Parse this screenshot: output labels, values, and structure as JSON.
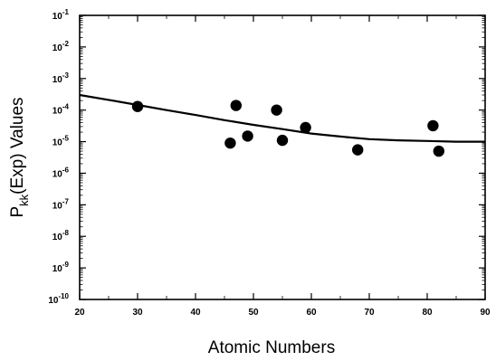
{
  "chart_data": {
    "type": "scatter",
    "title": "",
    "xlabel": "Atomic Numbers",
    "ylabel": {
      "main": "P",
      "subscript": "kk",
      "rest": "(Exp)  Values"
    },
    "xlim": [
      20,
      90
    ],
    "ylim_log10": [
      -10,
      -1
    ],
    "y_scale": "log",
    "grid": false,
    "x_ticks": [
      20,
      30,
      40,
      50,
      60,
      70,
      80,
      90
    ],
    "x_tick_labels": [
      "20",
      "30",
      "40",
      "50",
      "60",
      "70",
      "80",
      "90"
    ],
    "y_ticks_log10": [
      -10,
      -9,
      -8,
      -7,
      -6,
      -5,
      -4,
      -3,
      -2,
      -1
    ],
    "y_tick_labels": [
      {
        "base": "10",
        "exp": "-10"
      },
      {
        "base": "10",
        "exp": "-9"
      },
      {
        "base": "10",
        "exp": "-8"
      },
      {
        "base": "10",
        "exp": "-7"
      },
      {
        "base": "10",
        "exp": "-6"
      },
      {
        "base": "10",
        "exp": "-5"
      },
      {
        "base": "10",
        "exp": "-4"
      },
      {
        "base": "10",
        "exp": "-3"
      },
      {
        "base": "10",
        "exp": "-2"
      },
      {
        "base": "10",
        "exp": "-1"
      }
    ],
    "points": [
      {
        "x": 30,
        "y": 0.00013
      },
      {
        "x": 46,
        "y": 9e-06
      },
      {
        "x": 47,
        "y": 0.00014
      },
      {
        "x": 49,
        "y": 1.5e-05
      },
      {
        "x": 54,
        "y": 0.0001
      },
      {
        "x": 55,
        "y": 1.1e-05
      },
      {
        "x": 59,
        "y": 2.8e-05
      },
      {
        "x": 68,
        "y": 5.5e-06
      },
      {
        "x": 81,
        "y": 3.2e-05
      },
      {
        "x": 82,
        "y": 5e-06
      }
    ],
    "fit_curve": [
      {
        "x": 20,
        "y": 0.0003
      },
      {
        "x": 25,
        "y": 0.00021
      },
      {
        "x": 30,
        "y": 0.000145
      },
      {
        "x": 35,
        "y": 0.0001
      },
      {
        "x": 40,
        "y": 7e-05
      },
      {
        "x": 45,
        "y": 4.8e-05
      },
      {
        "x": 50,
        "y": 3.4e-05
      },
      {
        "x": 55,
        "y": 2.5e-05
      },
      {
        "x": 60,
        "y": 1.8e-05
      },
      {
        "x": 65,
        "y": 1.45e-05
      },
      {
        "x": 70,
        "y": 1.2e-05
      },
      {
        "x": 75,
        "y": 1.1e-05
      },
      {
        "x": 80,
        "y": 1.05e-05
      },
      {
        "x": 85,
        "y": 1e-05
      },
      {
        "x": 90,
        "y": 1e-05
      }
    ],
    "marker_color": "#000000",
    "line_color": "#000000"
  }
}
